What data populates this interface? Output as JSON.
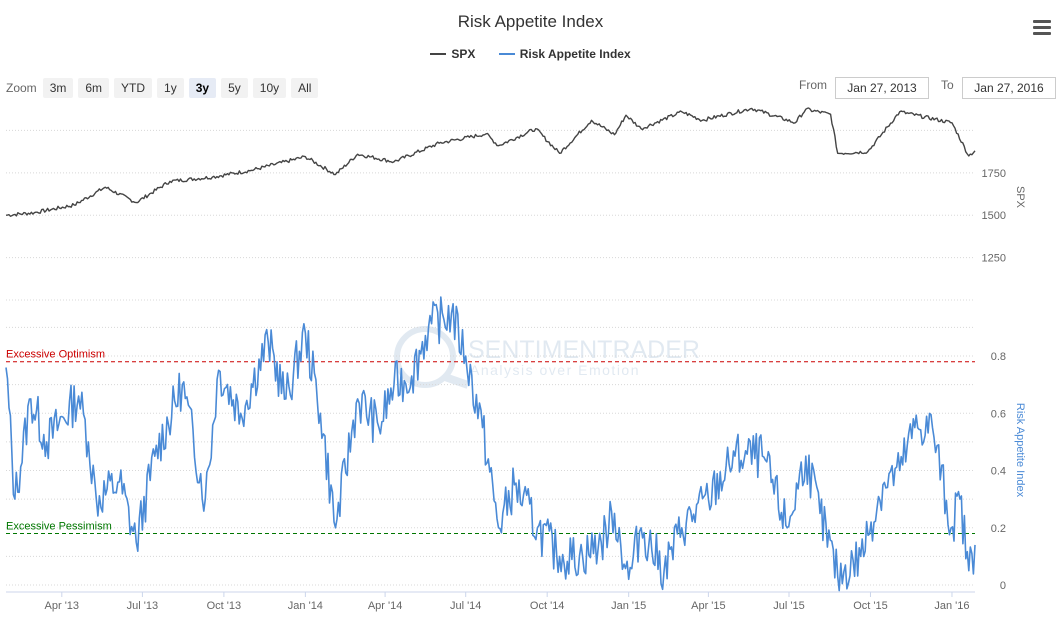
{
  "chart_title": "Risk Appetite Index",
  "legend": [
    {
      "name": "SPX",
      "color": "#444444"
    },
    {
      "name": "Risk Appetite Index",
      "color": "#4a8ad6"
    }
  ],
  "zoom": {
    "label": "Zoom",
    "buttons": [
      "3m",
      "6m",
      "YTD",
      "1y",
      "3y",
      "5y",
      "10y",
      "All"
    ],
    "active": "3y"
  },
  "range": {
    "from_label": "From",
    "from_value": "Jan 27, 2013",
    "to_label": "To",
    "to_value": "Jan 27, 2016"
  },
  "watermark": {
    "name": "SENTIMENTRADER",
    "tagline": "Analysis over Emotion"
  },
  "chart_data": [
    {
      "type": "line",
      "series": [
        {
          "name": "SPX",
          "color": "#444444"
        }
      ],
      "x": [
        "2013-01-28",
        "2013-03-01",
        "2013-04-15",
        "2013-05-20",
        "2013-06-24",
        "2013-08-01",
        "2013-09-18",
        "2013-11-01",
        "2014-01-01",
        "2014-02-04",
        "2014-03-01",
        "2014-04-11",
        "2014-06-01",
        "2014-07-24",
        "2014-08-07",
        "2014-09-18",
        "2014-10-15",
        "2014-11-20",
        "2014-12-16",
        "2014-12-29",
        "2015-01-15",
        "2015-03-02",
        "2015-03-25",
        "2015-05-20",
        "2015-07-08",
        "2015-07-20",
        "2015-08-17",
        "2015-08-25",
        "2015-09-28",
        "2015-11-03",
        "2016-01-01",
        "2016-01-20",
        "2016-01-27"
      ],
      "y": [
        1500,
        1515,
        1560,
        1665,
        1575,
        1700,
        1725,
        1765,
        1845,
        1740,
        1860,
        1815,
        1925,
        1980,
        1910,
        2010,
        1865,
        2060,
        1975,
        2090,
        2010,
        2110,
        2060,
        2130,
        2045,
        2125,
        2095,
        1865,
        1875,
        2110,
        2045,
        1850,
        1880
      ],
      "ylabel": "SPX",
      "yticks": [
        1250,
        1500,
        1750
      ],
      "ylim": [
        1000,
        2150
      ]
    },
    {
      "type": "line",
      "series": [
        {
          "name": "Risk Appetite Index",
          "color": "#4a8ad6"
        }
      ],
      "x": [
        "2013-01-28",
        "2013-02-07",
        "2013-02-25",
        "2013-03-15",
        "2013-04-20",
        "2013-05-01",
        "2013-05-10",
        "2013-06-05",
        "2013-06-24",
        "2013-07-15",
        "2013-08-15",
        "2013-09-10",
        "2013-09-25",
        "2013-10-20",
        "2013-11-20",
        "2013-12-10",
        "2014-01-01",
        "2014-01-18",
        "2014-02-04",
        "2014-03-01",
        "2014-03-25",
        "2014-04-11",
        "2014-05-01",
        "2014-05-20",
        "2014-06-15",
        "2014-07-01",
        "2014-07-20",
        "2014-08-07",
        "2014-08-25",
        "2014-09-20",
        "2014-10-15",
        "2014-11-10",
        "2014-12-01",
        "2014-12-16",
        "2015-01-01",
        "2015-01-15",
        "2015-02-10",
        "2015-03-02",
        "2015-04-01",
        "2015-05-01",
        "2015-06-01",
        "2015-06-29",
        "2015-07-20",
        "2015-08-05",
        "2015-08-25",
        "2015-09-20",
        "2015-10-15",
        "2015-11-03",
        "2015-11-20",
        "2015-12-10",
        "2015-12-31",
        "2016-01-10",
        "2016-01-20",
        "2016-01-27"
      ],
      "y": [
        0.76,
        0.3,
        0.65,
        0.5,
        0.66,
        0.5,
        0.3,
        0.36,
        0.15,
        0.45,
        0.7,
        0.3,
        0.75,
        0.6,
        0.85,
        0.65,
        0.88,
        0.6,
        0.2,
        0.65,
        0.55,
        0.7,
        0.73,
        0.9,
        0.95,
        0.8,
        0.55,
        0.2,
        0.35,
        0.2,
        0.1,
        0.1,
        0.15,
        0.25,
        0.02,
        0.2,
        0.05,
        0.2,
        0.3,
        0.45,
        0.45,
        0.2,
        0.45,
        0.25,
        0.03,
        0.1,
        0.35,
        0.4,
        0.55,
        0.55,
        0.2,
        0.3,
        0.05,
        0.14
      ],
      "ylabel": "Risk Appetite Index",
      "yticks": [
        0,
        0.2,
        0.4,
        0.6,
        0.8
      ],
      "ylim": [
        0,
        1.0
      ],
      "reference_lines": [
        {
          "label": "Excessive Optimism",
          "value": 0.78,
          "color": "#cc0000"
        },
        {
          "label": "Excessive Pessimism",
          "value": 0.18,
          "color": "#007700"
        }
      ]
    }
  ],
  "x_axis_ticks": [
    {
      "date": "2013-04-01",
      "label": "Apr '13"
    },
    {
      "date": "2013-07-01",
      "label": "Jul '13"
    },
    {
      "date": "2013-10-01",
      "label": "Oct '13"
    },
    {
      "date": "2014-01-01",
      "label": "Jan '14"
    },
    {
      "date": "2014-04-01",
      "label": "Apr '14"
    },
    {
      "date": "2014-07-01",
      "label": "Jul '14"
    },
    {
      "date": "2014-10-01",
      "label": "Oct '14"
    },
    {
      "date": "2015-01-01",
      "label": "Jan '15"
    },
    {
      "date": "2015-04-01",
      "label": "Apr '15"
    },
    {
      "date": "2015-07-01",
      "label": "Jul '15"
    },
    {
      "date": "2015-10-01",
      "label": "Oct '15"
    },
    {
      "date": "2016-01-01",
      "label": "Jan '16"
    }
  ]
}
